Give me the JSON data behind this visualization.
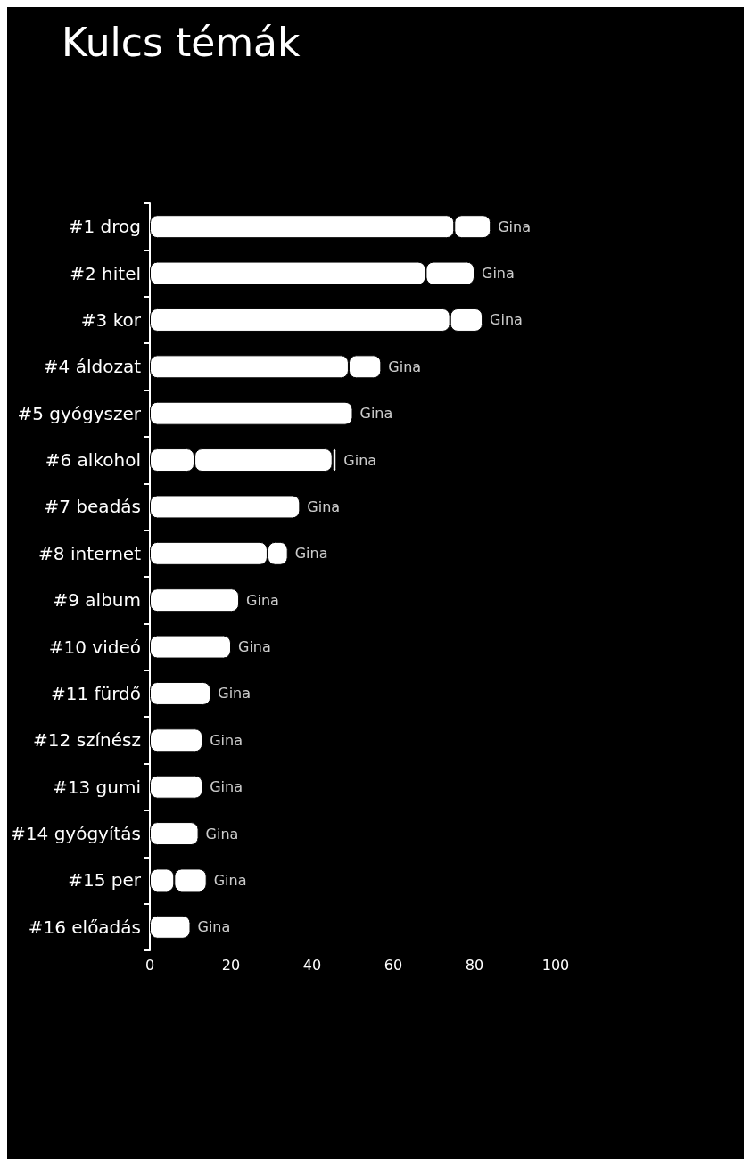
{
  "chart_data": {
    "type": "bar",
    "orientation": "horizontal",
    "stacked": true,
    "title": "Kulcs témák",
    "categories": [
      "#1 drog",
      "#2 hitel",
      "#3 kor",
      "#4 áldozat",
      "#5 gyógyszer",
      "#6 alkohol",
      "#7 beadás",
      "#8 internet",
      "#9 album",
      "#10 videó",
      "#11 fürdő",
      "#12 színész",
      "#13 gumi",
      "#14 gyógyítás",
      "#15 per",
      "#16 előadás"
    ],
    "series": [
      {
        "color": "#ffffff",
        "values": [
          75,
          68,
          74,
          49,
          50,
          11,
          37,
          29,
          22,
          20,
          15,
          13,
          13,
          12,
          6,
          10
        ]
      },
      {
        "color": "#ffffff",
        "values": [
          9,
          12,
          8,
          8,
          null,
          34,
          null,
          5,
          null,
          null,
          null,
          null,
          null,
          null,
          8,
          null
        ]
      },
      {
        "color": "#ffffff",
        "values": [
          null,
          null,
          null,
          null,
          null,
          1,
          null,
          null,
          null,
          null,
          null,
          null,
          null,
          null,
          null,
          null
        ]
      }
    ],
    "xlim": [
      0,
      100
    ],
    "xticks": [
      0,
      20,
      40,
      60,
      80,
      100
    ],
    "grid": false,
    "annotations": [
      {
        "text": "Gina",
        "x": 84,
        "y": "#1 drog"
      },
      {
        "text": "Gina",
        "x": 80,
        "y": "#2 hitel"
      },
      {
        "text": "Gina",
        "x": 82,
        "y": "#3 kor"
      },
      {
        "text": "Gina",
        "x": 57,
        "y": "#4 áldozat"
      },
      {
        "text": "Gina",
        "x": 50,
        "y": "#5 gyógyszer"
      },
      {
        "text": "Gina",
        "x": 46,
        "y": "#6 alkohol"
      },
      {
        "text": "Gina",
        "x": 37,
        "y": "#7 beadás"
      },
      {
        "text": "Gina",
        "x": 34,
        "y": "#8 internet"
      },
      {
        "text": "Gina",
        "x": 22,
        "y": "#9 album"
      },
      {
        "text": "Gina",
        "x": 20,
        "y": "#10 videó"
      },
      {
        "text": "Gina",
        "x": 15,
        "y": "#11 fürdő"
      },
      {
        "text": "Gina",
        "x": 13,
        "y": "#12 színész"
      },
      {
        "text": "Gina",
        "x": 13,
        "y": "#13 gumi"
      },
      {
        "text": "Gina",
        "x": 12,
        "y": "#14 gyógyítás"
      },
      {
        "text": "Gina",
        "x": 14,
        "y": "#15 per"
      },
      {
        "text": "Gina",
        "x": 10,
        "y": "#16 előadás"
      }
    ]
  }
}
